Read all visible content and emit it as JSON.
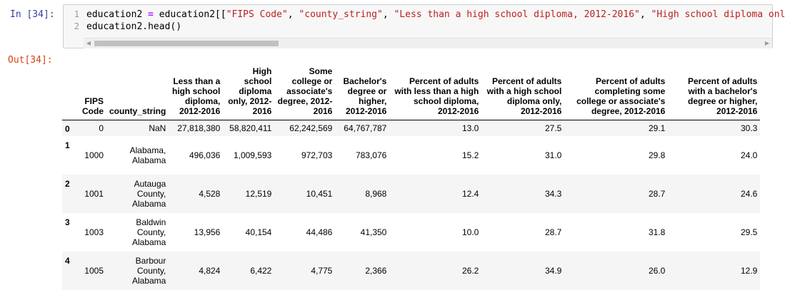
{
  "input_cell": {
    "prompt": "In [34]:",
    "line_numbers": [
      "1",
      "2"
    ],
    "line1": {
      "lhs": "education2 ",
      "op": "=",
      "rhs_var": " education2[[",
      "str1": "\"FIPS Code\"",
      "sep1": ", ",
      "str2": "\"county_string\"",
      "sep2": ", ",
      "str3": "\"Less than a high school diploma, 2012-2016\"",
      "sep3": ", ",
      "str4": "\"High school diploma onl"
    },
    "line2": "education2.head()"
  },
  "output_cell": {
    "prompt": "Out[34]:"
  },
  "table": {
    "headers": [
      "",
      "FIPS Code",
      "county_string",
      "Less than a high school diploma, 2012-2016",
      "High school diploma only, 2012-2016",
      "Some college or associate's degree, 2012-2016",
      "Bachelor's degree or higher, 2012-2016",
      "Percent of adults with less than a high school diploma, 2012-2016",
      "Percent of adults with a high school diploma only, 2012-2016",
      "Percent of adults completing some college or associate's degree, 2012-2016",
      "Percent of adults with a bachelor's degree or higher, 2012-2016"
    ],
    "rows": [
      {
        "index": "0",
        "cells": [
          "0",
          "NaN",
          "27,818,380",
          "58,820,411",
          "62,242,569",
          "64,767,787",
          "13.0",
          "27.5",
          "29.1",
          "30.3"
        ]
      },
      {
        "index": "1",
        "cells": [
          "1000",
          "Alabama, Alabama",
          "496,036",
          "1,009,593",
          "972,703",
          "783,076",
          "15.2",
          "31.0",
          "29.8",
          "24.0"
        ]
      },
      {
        "index": "2",
        "cells": [
          "1001",
          "Autauga County, Alabama",
          "4,528",
          "12,519",
          "10,451",
          "8,968",
          "12.4",
          "34.3",
          "28.7",
          "24.6"
        ]
      },
      {
        "index": "3",
        "cells": [
          "1003",
          "Baldwin County, Alabama",
          "13,956",
          "40,154",
          "44,486",
          "41,350",
          "10.0",
          "28.7",
          "31.8",
          "29.5"
        ]
      },
      {
        "index": "4",
        "cells": [
          "1005",
          "Barbour County, Alabama",
          "4,824",
          "6,422",
          "4,775",
          "2,366",
          "26.2",
          "34.9",
          "26.0",
          "12.9"
        ]
      }
    ]
  }
}
